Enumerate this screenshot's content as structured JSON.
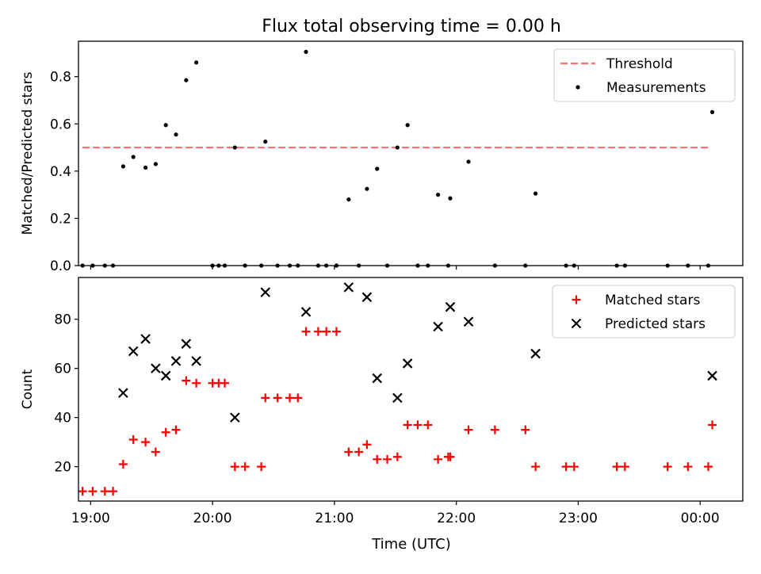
{
  "figure": {
    "title": "Flux total observing time = 0.00 h",
    "xlabel": "Time (UTC)",
    "xticks": [
      "19:00",
      "20:00",
      "21:00",
      "22:00",
      "23:00",
      "00:00"
    ]
  },
  "chart_data": [
    {
      "type": "scatter",
      "ylabel": "Matched/Predicted stars",
      "ylim": [
        0,
        0.95
      ],
      "yticks": [
        "0.0",
        "0.2",
        "0.4",
        "0.6",
        "0.8"
      ],
      "xlim": [
        "18:54",
        "00:21"
      ],
      "legend": {
        "placement": "top-right",
        "entries": [
          "Threshold",
          "Measurements"
        ]
      },
      "threshold": {
        "name": "Threshold",
        "value": 0.5,
        "x_start": "18:56",
        "x_end": "00:04",
        "color": "#ff7070",
        "style": "dashed"
      },
      "series": [
        {
          "name": "Measurements",
          "color": "#000000",
          "marker": "dot",
          "points": [
            [
              "18:56",
              0.0
            ],
            [
              "19:01",
              0.0
            ],
            [
              "19:07",
              0.0
            ],
            [
              "19:11",
              0.0
            ],
            [
              "19:16",
              0.42
            ],
            [
              "19:21",
              0.46
            ],
            [
              "19:27",
              0.415
            ],
            [
              "19:32",
              0.43
            ],
            [
              "19:37",
              0.595
            ],
            [
              "19:42",
              0.555
            ],
            [
              "19:47",
              0.785
            ],
            [
              "19:52",
              0.86
            ],
            [
              "20:00",
              0.0
            ],
            [
              "20:03",
              0.0
            ],
            [
              "20:06",
              0.0
            ],
            [
              "20:11",
              0.5
            ],
            [
              "20:16",
              0.0
            ],
            [
              "20:24",
              0.0
            ],
            [
              "20:26",
              0.525
            ],
            [
              "20:32",
              0.0
            ],
            [
              "20:38",
              0.0
            ],
            [
              "20:42",
              0.0
            ],
            [
              "20:46",
              0.905
            ],
            [
              "20:52",
              0.0
            ],
            [
              "20:56",
              0.0
            ],
            [
              "21:01",
              0.0
            ],
            [
              "21:07",
              0.28
            ],
            [
              "21:12",
              0.0
            ],
            [
              "21:16",
              0.325
            ],
            [
              "21:21",
              0.41
            ],
            [
              "21:26",
              0.0
            ],
            [
              "21:31",
              0.5
            ],
            [
              "21:36",
              0.595
            ],
            [
              "21:41",
              0.0
            ],
            [
              "21:46",
              0.0
            ],
            [
              "21:51",
              0.3
            ],
            [
              "21:56",
              0.0
            ],
            [
              "21:57",
              0.285
            ],
            [
              "22:06",
              0.44
            ],
            [
              "22:19",
              0.0
            ],
            [
              "22:34",
              0.0
            ],
            [
              "22:39",
              0.305
            ],
            [
              "22:54",
              0.0
            ],
            [
              "22:58",
              0.0
            ],
            [
              "23:19",
              0.0
            ],
            [
              "23:23",
              0.0
            ],
            [
              "23:44",
              0.0
            ],
            [
              "23:54",
              0.0
            ],
            [
              "00:04",
              0.0
            ],
            [
              "00:06",
              0.65
            ]
          ]
        }
      ]
    },
    {
      "type": "scatter",
      "ylabel": "Count",
      "ylim": [
        6,
        97
      ],
      "yticks": [
        "20",
        "40",
        "60",
        "80"
      ],
      "xlim": [
        "18:54",
        "00:21"
      ],
      "legend": {
        "placement": "top-right",
        "entries": [
          "Matched stars",
          "Predicted stars"
        ]
      },
      "series": [
        {
          "name": "Matched stars",
          "color": "#ff0000",
          "marker": "plus",
          "points": [
            [
              "18:56",
              10
            ],
            [
              "19:01",
              10
            ],
            [
              "19:07",
              10
            ],
            [
              "19:11",
              10
            ],
            [
              "19:16",
              21
            ],
            [
              "19:21",
              31
            ],
            [
              "19:27",
              30
            ],
            [
              "19:32",
              26
            ],
            [
              "19:37",
              34
            ],
            [
              "19:42",
              35
            ],
            [
              "19:47",
              55
            ],
            [
              "19:52",
              54
            ],
            [
              "20:00",
              54
            ],
            [
              "20:03",
              54
            ],
            [
              "20:06",
              54
            ],
            [
              "20:11",
              20
            ],
            [
              "20:16",
              20
            ],
            [
              "20:24",
              20
            ],
            [
              "20:26",
              48
            ],
            [
              "20:32",
              48
            ],
            [
              "20:38",
              48
            ],
            [
              "20:42",
              48
            ],
            [
              "20:46",
              75
            ],
            [
              "20:52",
              75
            ],
            [
              "20:56",
              75
            ],
            [
              "21:01",
              75
            ],
            [
              "21:07",
              26
            ],
            [
              "21:12",
              26
            ],
            [
              "21:16",
              29
            ],
            [
              "21:21",
              23
            ],
            [
              "21:26",
              23
            ],
            [
              "21:31",
              24
            ],
            [
              "21:36",
              37
            ],
            [
              "21:41",
              37
            ],
            [
              "21:46",
              37
            ],
            [
              "21:51",
              23
            ],
            [
              "21:56",
              24
            ],
            [
              "21:57",
              24
            ],
            [
              "22:06",
              35
            ],
            [
              "22:19",
              35
            ],
            [
              "22:34",
              35
            ],
            [
              "22:39",
              20
            ],
            [
              "22:54",
              20
            ],
            [
              "22:58",
              20
            ],
            [
              "23:19",
              20
            ],
            [
              "23:23",
              20
            ],
            [
              "23:44",
              20
            ],
            [
              "23:54",
              20
            ],
            [
              "00:04",
              20
            ],
            [
              "00:06",
              37
            ]
          ]
        },
        {
          "name": "Predicted stars",
          "color": "#000000",
          "marker": "x",
          "points": [
            [
              "19:16",
              50
            ],
            [
              "19:21",
              67
            ],
            [
              "19:27",
              72
            ],
            [
              "19:32",
              60
            ],
            [
              "19:37",
              57
            ],
            [
              "19:42",
              63
            ],
            [
              "19:47",
              70
            ],
            [
              "19:52",
              63
            ],
            [
              "20:11",
              40
            ],
            [
              "20:26",
              91
            ],
            [
              "20:46",
              83
            ],
            [
              "21:07",
              93
            ],
            [
              "21:16",
              89
            ],
            [
              "21:21",
              56
            ],
            [
              "21:31",
              48
            ],
            [
              "21:36",
              62
            ],
            [
              "21:51",
              77
            ],
            [
              "21:57",
              85
            ],
            [
              "22:06",
              79
            ],
            [
              "22:39",
              66
            ],
            [
              "00:06",
              57
            ]
          ]
        }
      ]
    }
  ]
}
